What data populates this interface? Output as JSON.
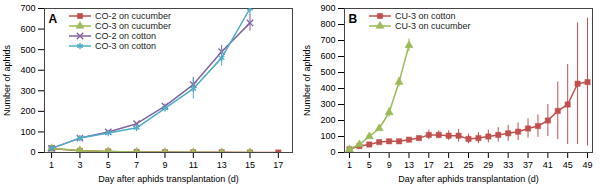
{
  "chart_data": [
    {
      "type": "line",
      "title": "A",
      "x_label": "Day after aphids transplantation (d)",
      "y_label": "Number of aphids",
      "x": [
        1,
        3,
        5,
        7,
        9,
        11,
        13,
        15,
        17
      ],
      "xlim": [
        0.5,
        18
      ],
      "xticks": [
        1,
        3,
        5,
        7,
        9,
        11,
        13,
        15,
        17
      ],
      "ylim": [
        0,
        700
      ],
      "yticks": [
        0,
        100,
        200,
        300,
        400,
        500,
        600,
        700
      ],
      "grid": false,
      "legend": "top-left",
      "series": [
        {
          "name": "CO-2 on cucumber",
          "color": "#c0504d",
          "marker": "square",
          "line_style": "solid",
          "values": [
            20,
            8,
            5,
            3,
            2,
            1,
            1,
            0,
            0
          ],
          "errors": [
            null,
            null,
            null,
            null,
            null,
            null,
            null,
            null,
            null
          ]
        },
        {
          "name": "CO-3 on cucumber",
          "color": "#9bbb59",
          "marker": "triangle",
          "line_style": "solid",
          "values": [
            20,
            10,
            5,
            2,
            1,
            1,
            0,
            0,
            null
          ],
          "errors": [
            null,
            null,
            null,
            null,
            null,
            null,
            null,
            null,
            null
          ]
        },
        {
          "name": "CO-2 on cotton",
          "color": "#8064a2",
          "marker": "times",
          "line_style": "solid",
          "values": [
            20,
            70,
            100,
            140,
            225,
            330,
            490,
            630,
            null
          ],
          "errors": [
            null,
            null,
            null,
            null,
            10,
            35,
            30,
            40,
            null
          ]
        },
        {
          "name": "CO-3 on cotton",
          "color": "#4bacc6",
          "marker": "asterisk",
          "line_style": "solid",
          "values": [
            20,
            70,
            95,
            120,
            215,
            310,
            460,
            700,
            null
          ],
          "errors": [
            null,
            null,
            null,
            null,
            null,
            50,
            40,
            35,
            null
          ]
        }
      ]
    },
    {
      "type": "line",
      "title": "B",
      "x_label": "Day after aphids transplantation (d)",
      "y_label": "Number of aphids",
      "x": [
        1,
        3,
        5,
        7,
        9,
        11,
        13,
        15,
        17,
        19,
        21,
        23,
        25,
        27,
        29,
        31,
        33,
        35,
        37,
        39,
        41,
        43,
        45,
        47,
        49
      ],
      "xlim": [
        0,
        50
      ],
      "xticks": [
        1,
        5,
        9,
        13,
        17,
        21,
        25,
        29,
        33,
        37,
        41,
        45,
        49
      ],
      "ylim": [
        0,
        900
      ],
      "yticks": [
        0,
        100,
        200,
        300,
        400,
        500,
        600,
        700,
        800,
        900
      ],
      "grid": false,
      "legend": "top-left",
      "series": [
        {
          "name": "CU-3 on cotton",
          "color": "#c0504d",
          "marker": "square",
          "line_style": "solid",
          "values": [
            20,
            40,
            50,
            65,
            70,
            70,
            80,
            90,
            110,
            110,
            105,
            105,
            85,
            90,
            100,
            110,
            120,
            130,
            150,
            165,
            200,
            260,
            300,
            430,
            440
          ],
          "errors": [
            null,
            null,
            null,
            null,
            null,
            null,
            null,
            null,
            30,
            25,
            30,
            40,
            30,
            35,
            40,
            45,
            50,
            55,
            60,
            70,
            100,
            180,
            250,
            380,
            400
          ]
        },
        {
          "name": "CU-3 on cucumber",
          "color": "#9bbb59",
          "marker": "triangle",
          "line_style": "solid",
          "values": [
            20,
            50,
            100,
            150,
            250,
            440,
            670,
            null,
            null,
            null,
            null,
            null,
            null,
            null,
            null,
            null,
            null,
            null,
            null,
            null,
            null,
            null,
            null,
            null,
            null
          ],
          "errors": [
            null,
            null,
            null,
            null,
            30,
            30,
            40,
            null,
            null,
            null,
            null,
            null,
            null,
            null,
            null,
            null,
            null,
            null,
            null,
            null,
            null,
            null,
            null,
            null,
            null
          ]
        }
      ]
    }
  ]
}
